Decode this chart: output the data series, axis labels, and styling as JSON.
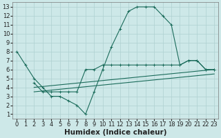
{
  "xlabel": "Humidex (Indice chaleur)",
  "ylabel": "",
  "xlim": [
    -0.5,
    23.5
  ],
  "ylim": [
    0.5,
    13.5
  ],
  "xticks": [
    0,
    1,
    2,
    3,
    4,
    5,
    6,
    7,
    8,
    9,
    10,
    11,
    12,
    13,
    14,
    15,
    16,
    17,
    18,
    19,
    20,
    21,
    22,
    23
  ],
  "yticks": [
    1,
    2,
    3,
    4,
    5,
    6,
    7,
    8,
    9,
    10,
    11,
    12,
    13
  ],
  "bg_color": "#cde8e8",
  "grid_color": "#aed0d0",
  "line_color": "#1a6b5a",
  "line1_x": [
    0,
    1,
    2,
    3,
    4,
    5,
    6,
    7,
    8,
    9,
    10,
    11,
    12,
    13,
    14,
    15,
    16,
    17,
    18,
    19,
    20,
    21,
    22,
    23
  ],
  "line1_y": [
    8,
    6.5,
    5,
    4,
    3,
    3,
    2.5,
    2,
    1,
    3.5,
    6,
    8.5,
    10.5,
    12.5,
    13,
    13,
    13,
    12,
    11,
    6.5,
    7,
    7,
    6,
    6
  ],
  "line2_x": [
    2,
    3,
    4,
    5,
    6,
    7,
    8,
    9,
    10,
    11,
    12,
    13,
    14,
    15,
    16,
    17,
    18,
    19,
    20,
    21,
    22,
    23
  ],
  "line2_y": [
    4.5,
    3.5,
    3.5,
    3.5,
    3.5,
    3.5,
    6,
    6,
    6.5,
    6.5,
    6.5,
    6.5,
    6.5,
    6.5,
    6.5,
    6.5,
    6.5,
    6.5,
    7,
    7,
    6,
    6
  ],
  "line3_x": [
    2,
    23
  ],
  "line3_y": [
    4,
    6
  ],
  "line4_x": [
    2,
    23
  ],
  "line4_y": [
    3.5,
    5.5
  ],
  "tick_fontsize": 6,
  "label_fontsize": 7.5
}
